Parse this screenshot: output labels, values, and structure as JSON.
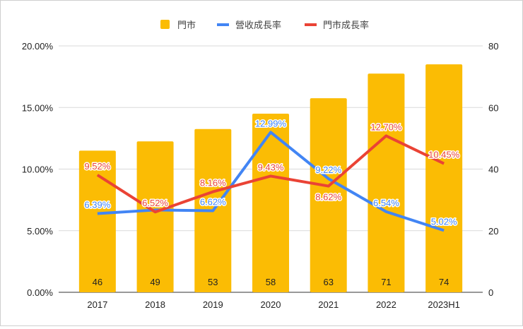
{
  "chart_data": {
    "type": "bar+line",
    "title": "",
    "categories": [
      "2017",
      "2018",
      "2019",
      "2020",
      "2021",
      "2022",
      "2023H1"
    ],
    "legend_position": "top",
    "grid": true,
    "left_axis": {
      "range": [
        0,
        20
      ],
      "ticks": [
        "0.00%",
        "5.00%",
        "10.00%",
        "15.00%",
        "20.00%"
      ]
    },
    "right_axis": {
      "range": [
        0,
        80
      ],
      "ticks": [
        "0",
        "20",
        "40",
        "60",
        "80"
      ]
    },
    "series": [
      {
        "name": "門市",
        "kind": "bar",
        "axis": "right",
        "color": "#fbbc04",
        "values": [
          46,
          49,
          53,
          58,
          63,
          71,
          74
        ],
        "labels": [
          "46",
          "49",
          "53",
          "58",
          "63",
          "71",
          "74"
        ]
      },
      {
        "name": "營收成長率",
        "kind": "line",
        "axis": "left",
        "color": "#4285f4",
        "values": [
          6.39,
          6.68,
          6.62,
          12.99,
          9.22,
          6.54,
          5.02
        ],
        "labels": [
          "6.39%",
          null,
          "6.62%",
          "12.99%",
          "9.22%",
          "6.54%",
          "5.02%"
        ]
      },
      {
        "name": "門市成長率",
        "kind": "line",
        "axis": "left",
        "color": "#ea4335",
        "values": [
          9.52,
          6.52,
          8.16,
          9.43,
          8.62,
          12.7,
          10.45
        ],
        "labels": [
          "9.52%",
          "6.52%",
          "8.16%",
          "9.43%",
          "8.62%",
          "12.70%",
          "10.45%"
        ]
      }
    ]
  }
}
